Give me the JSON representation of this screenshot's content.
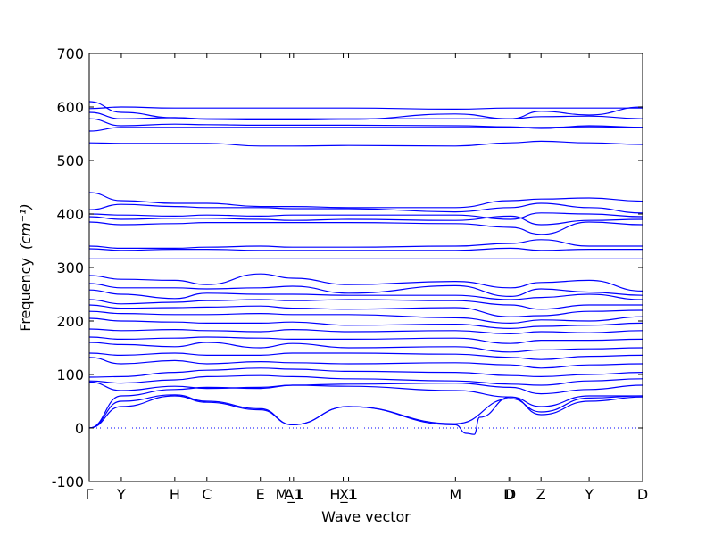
{
  "chart_data": {
    "type": "line",
    "xlabel": "Wave vector",
    "ylabel": "Frequency",
    "ylabel_unit": "(cm⁻¹)",
    "ylim": [
      -100,
      700
    ],
    "yticks": [
      -100,
      0,
      100,
      200,
      300,
      400,
      500,
      600,
      700
    ],
    "grid": false,
    "line_color": "#0000ff",
    "zero_line_color": "#0000ff",
    "path_length": 10.35,
    "high_symmetry_points": [
      {
        "label": "Γ",
        "x": 0.0
      },
      {
        "label": "Y",
        "x": 0.6
      },
      {
        "label": "H",
        "x": 1.6
      },
      {
        "label": "C",
        "x": 2.2
      },
      {
        "label": "E",
        "x": 3.2
      },
      {
        "label": "M_1",
        "x": 3.75
      },
      {
        "label": "A1",
        "x": 3.82
      },
      {
        "label": "H_1",
        "x": 4.75
      },
      {
        "label": "X1",
        "x": 4.85
      },
      {
        "label": "M",
        "x": 6.85
      },
      {
        "label": "D",
        "x": 7.85
      },
      {
        "label": "D",
        "x": 7.88
      },
      {
        "label": "Z",
        "x": 8.45
      },
      {
        "label": "Y",
        "x": 9.35
      },
      {
        "label": "D",
        "x": 10.35
      }
    ],
    "series": [
      {
        "x": [
          0,
          0.6,
          1.6,
          2.2,
          3.2,
          3.8,
          4.85,
          6.85,
          7.88,
          8.45,
          9.35,
          10.35
        ],
        "values": [
          597,
          600,
          598,
          598,
          598,
          598,
          598,
          596,
          598,
          598,
          598,
          598
        ]
      },
      {
        "x": [
          0,
          0.6,
          1.6,
          2.2,
          3.2,
          3.8,
          4.85,
          6.85,
          7.88,
          8.45,
          9.35,
          10.35
        ],
        "values": [
          610,
          590,
          580,
          577,
          576,
          576,
          577,
          587,
          578,
          592,
          585,
          600
        ]
      },
      {
        "x": [
          0,
          0.6,
          1.6,
          2.2,
          3.2,
          3.8,
          4.85,
          6.85,
          7.88,
          8.45,
          9.35,
          10.35
        ],
        "values": [
          590,
          578,
          580,
          578,
          578,
          578,
          578,
          578,
          578,
          582,
          583,
          578
        ]
      },
      {
        "x": [
          0,
          0.6,
          1.6,
          2.2,
          3.2,
          3.8,
          4.85,
          6.85,
          7.88,
          8.45,
          9.35,
          10.35
        ],
        "values": [
          578,
          565,
          568,
          567,
          566,
          566,
          566,
          565,
          563,
          560,
          565,
          562
        ]
      },
      {
        "x": [
          0,
          0.6,
          1.6,
          2.2,
          3.2,
          3.8,
          4.85,
          6.85,
          7.88,
          8.45,
          9.35,
          10.35
        ],
        "values": [
          555,
          562,
          562,
          562,
          562,
          562,
          562,
          562,
          562,
          562,
          563,
          562
        ]
      },
      {
        "x": [
          0,
          0.6,
          1.6,
          2.2,
          3.2,
          3.8,
          4.85,
          6.85,
          7.88,
          8.45,
          9.35,
          10.35
        ],
        "values": [
          533,
          532,
          532,
          532,
          527,
          527,
          528,
          527,
          533,
          536,
          533,
          530
        ]
      },
      {
        "x": [
          0,
          0.6,
          1.6,
          2.2,
          3.2,
          3.8,
          4.85,
          6.85,
          7.88,
          8.45,
          9.35,
          10.35
        ],
        "values": [
          440,
          425,
          420,
          420,
          414,
          414,
          412,
          412,
          425,
          428,
          430,
          424
        ]
      },
      {
        "x": [
          0,
          0.6,
          1.6,
          2.2,
          3.2,
          3.8,
          4.85,
          6.85,
          7.88,
          8.45,
          9.35,
          10.35
        ],
        "values": [
          408,
          418,
          414,
          412,
          412,
          410,
          410,
          404,
          412,
          420,
          412,
          402
        ]
      },
      {
        "x": [
          0,
          0.6,
          1.6,
          2.2,
          3.2,
          3.8,
          4.85,
          6.85,
          7.88,
          8.45,
          9.35,
          10.35
        ],
        "values": [
          400,
          398,
          396,
          398,
          396,
          398,
          398,
          398,
          390,
          402,
          400,
          395
        ]
      },
      {
        "x": [
          0,
          0.6,
          1.6,
          2.2,
          3.2,
          3.8,
          4.85,
          6.85,
          7.88,
          8.45,
          9.35,
          10.35
        ],
        "values": [
          395,
          390,
          392,
          392,
          390,
          388,
          390,
          388,
          396,
          380,
          388,
          390
        ]
      },
      {
        "x": [
          0,
          0.6,
          1.6,
          2.2,
          3.2,
          3.8,
          4.85,
          6.85,
          7.88,
          8.45,
          9.35,
          10.35
        ],
        "values": [
          385,
          380,
          382,
          384,
          384,
          384,
          384,
          382,
          375,
          362,
          385,
          380
        ]
      },
      {
        "x": [
          0,
          0.6,
          1.6,
          2.2,
          3.2,
          3.8,
          4.85,
          6.85,
          7.88,
          8.45,
          9.35,
          10.35
        ],
        "values": [
          340,
          336,
          336,
          338,
          340,
          338,
          338,
          340,
          345,
          352,
          340,
          340
        ]
      },
      {
        "x": [
          0,
          0.6,
          1.6,
          2.2,
          3.2,
          3.8,
          4.85,
          6.85,
          7.88,
          8.45,
          9.35,
          10.35
        ],
        "values": [
          335,
          332,
          334,
          334,
          332,
          332,
          332,
          332,
          336,
          332,
          334,
          334
        ]
      },
      {
        "x": [
          0,
          0.6,
          1.6,
          2.2,
          3.2,
          3.8,
          4.85,
          6.85,
          7.88,
          8.45,
          9.35,
          10.35
        ],
        "values": [
          316,
          316,
          316,
          316,
          316,
          316,
          316,
          316,
          316,
          316,
          316,
          316
        ]
      },
      {
        "x": [
          0,
          0.6,
          1.6,
          2.2,
          3.2,
          3.8,
          4.85,
          6.85,
          7.88,
          8.45,
          9.35,
          10.35
        ],
        "values": [
          285,
          278,
          276,
          268,
          288,
          280,
          268,
          274,
          262,
          272,
          276,
          256
        ]
      },
      {
        "x": [
          0,
          0.6,
          1.6,
          2.2,
          3.2,
          3.8,
          4.85,
          6.85,
          7.88,
          8.45,
          9.35,
          10.35
        ],
        "values": [
          270,
          262,
          262,
          260,
          262,
          265,
          252,
          266,
          246,
          260,
          254,
          248
        ]
      },
      {
        "x": [
          0,
          0.6,
          1.6,
          2.2,
          3.2,
          3.8,
          4.85,
          6.85,
          7.88,
          8.45,
          9.35,
          10.35
        ],
        "values": [
          258,
          250,
          242,
          252,
          250,
          250,
          248,
          248,
          240,
          244,
          250,
          240
        ]
      },
      {
        "x": [
          0,
          0.6,
          1.6,
          2.2,
          3.2,
          3.8,
          4.85,
          6.85,
          7.88,
          8.45,
          9.35,
          10.35
        ],
        "values": [
          240,
          232,
          235,
          238,
          240,
          238,
          240,
          238,
          230,
          222,
          230,
          230
        ]
      },
      {
        "x": [
          0,
          0.6,
          1.6,
          2.2,
          3.2,
          3.8,
          4.85,
          6.85,
          7.88,
          8.45,
          9.35,
          10.35
        ],
        "values": [
          230,
          224,
          225,
          226,
          228,
          224,
          222,
          225,
          208,
          210,
          218,
          220
        ]
      },
      {
        "x": [
          0,
          0.6,
          1.6,
          2.2,
          3.2,
          3.8,
          4.85,
          6.85,
          7.88,
          8.45,
          9.35,
          10.35
        ],
        "values": [
          218,
          214,
          212,
          212,
          214,
          212,
          212,
          206,
          196,
          202,
          200,
          208
        ]
      },
      {
        "x": [
          0,
          0.6,
          1.6,
          2.2,
          3.2,
          3.8,
          4.85,
          6.85,
          7.88,
          8.45,
          9.35,
          10.35
        ],
        "values": [
          205,
          200,
          198,
          196,
          196,
          198,
          192,
          194,
          186,
          190,
          192,
          196
        ]
      },
      {
        "x": [
          0,
          0.6,
          1.6,
          2.2,
          3.2,
          3.8,
          4.85,
          6.85,
          7.88,
          8.45,
          9.35,
          10.35
        ],
        "values": [
          185,
          182,
          184,
          182,
          180,
          184,
          180,
          182,
          176,
          180,
          178,
          182
        ]
      },
      {
        "x": [
          0,
          0.6,
          1.6,
          2.2,
          3.2,
          3.8,
          4.85,
          6.85,
          7.88,
          8.45,
          9.35,
          10.35
        ],
        "values": [
          170,
          166,
          168,
          170,
          168,
          166,
          166,
          168,
          158,
          164,
          164,
          166
        ]
      },
      {
        "x": [
          0,
          0.6,
          1.6,
          2.2,
          3.2,
          3.8,
          4.85,
          6.85,
          7.88,
          8.45,
          9.35,
          10.35
        ],
        "values": [
          160,
          156,
          152,
          160,
          150,
          158,
          150,
          152,
          142,
          146,
          148,
          150
        ]
      },
      {
        "x": [
          0,
          0.6,
          1.6,
          2.2,
          3.2,
          3.8,
          4.85,
          6.85,
          7.88,
          8.45,
          9.35,
          10.35
        ],
        "values": [
          140,
          136,
          140,
          136,
          136,
          140,
          140,
          138,
          132,
          128,
          134,
          136
        ]
      },
      {
        "x": [
          0,
          0.6,
          1.6,
          2.2,
          3.2,
          3.8,
          4.85,
          6.85,
          7.88,
          8.45,
          9.35,
          10.35
        ],
        "values": [
          132,
          120,
          126,
          120,
          124,
          122,
          120,
          122,
          118,
          112,
          118,
          120
        ]
      },
      {
        "x": [
          0,
          0.6,
          1.6,
          2.2,
          3.2,
          3.8,
          4.85,
          6.85,
          7.88,
          8.45,
          9.35,
          10.35
        ],
        "values": [
          95,
          96,
          104,
          108,
          112,
          110,
          106,
          104,
          98,
          96,
          100,
          104
        ]
      },
      {
        "x": [
          0,
          0.6,
          1.6,
          2.2,
          3.2,
          3.8,
          4.85,
          6.85,
          7.88,
          8.45,
          9.35,
          10.35
        ],
        "values": [
          88,
          84,
          90,
          96,
          98,
          96,
          92,
          88,
          82,
          80,
          88,
          92
        ]
      },
      {
        "x": [
          0,
          0.6,
          1.6,
          2.2,
          3.2,
          3.8,
          4.85,
          6.85,
          7.88,
          8.45,
          9.35,
          10.35
        ],
        "values": [
          86,
          70,
          78,
          74,
          76,
          80,
          82,
          84,
          76,
          64,
          72,
          80
        ]
      },
      {
        "x": [
          0,
          0.6,
          1.6,
          2.2,
          3.2,
          3.8,
          4.85,
          6.85,
          7.88,
          8.45,
          9.35,
          10.35
        ],
        "values": [
          0,
          60,
          72,
          76,
          74,
          80,
          78,
          70,
          58,
          40,
          60,
          60
        ]
      },
      {
        "x": [
          0,
          0.6,
          1.6,
          2.2,
          3.2,
          3.8,
          4.85,
          6.85,
          7.88,
          8.45,
          9.35,
          10.35
        ],
        "values": [
          0,
          50,
          62,
          50,
          36,
          6,
          40,
          8,
          55,
          30,
          56,
          60
        ]
      },
      {
        "x": [
          0,
          0.6,
          1.6,
          2.2,
          3.2,
          3.8,
          4.85,
          6.85,
          7.05,
          7.2,
          7.3,
          7.88,
          8.45,
          9.35,
          10.35
        ],
        "values": [
          0,
          40,
          60,
          48,
          34,
          6,
          40,
          6,
          -10,
          -12,
          20,
          58,
          25,
          50,
          58
        ]
      }
    ]
  }
}
